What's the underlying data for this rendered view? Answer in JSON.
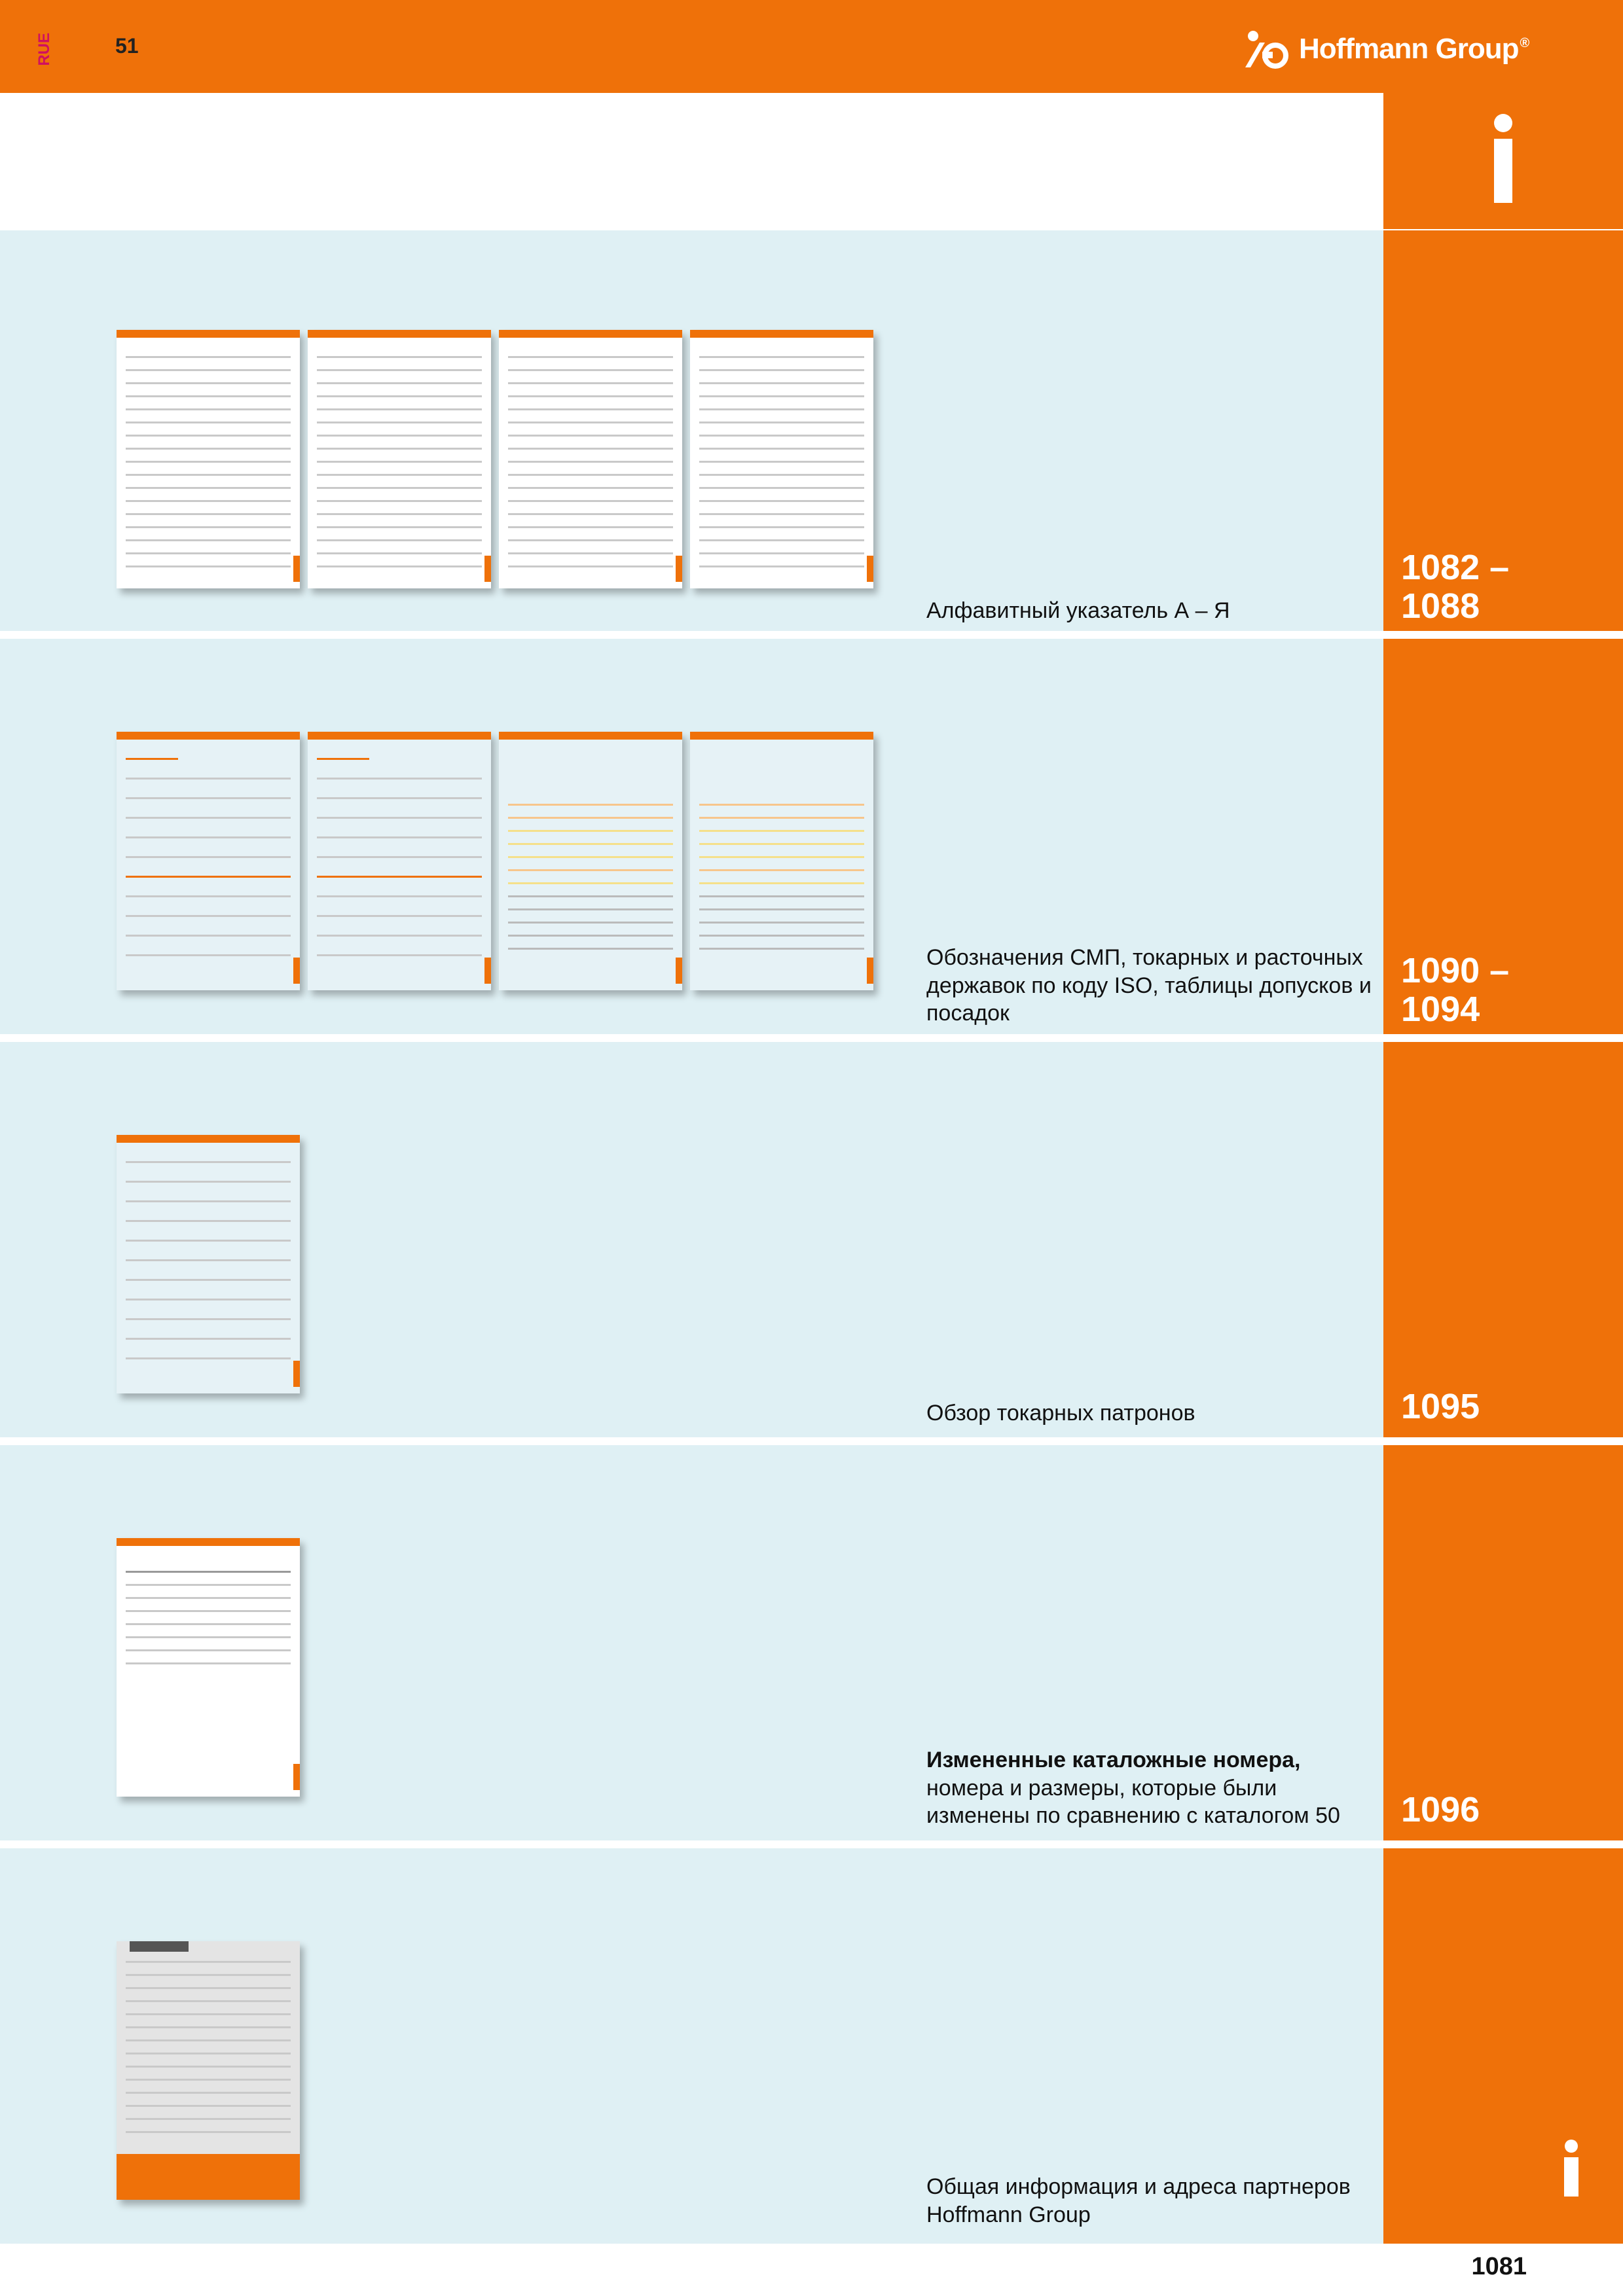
{
  "header": {
    "language_code": "RUE",
    "edition": "51",
    "brand": "Hoffmann Group",
    "brand_mark": "®"
  },
  "sections": [
    {
      "pages": "1082 –\n1088",
      "desc_bold": "",
      "desc": "Алфавитный указатель А – Я",
      "thumb_count": 4
    },
    {
      "pages": "1090 –\n1094",
      "desc_bold": "",
      "desc": "Обозначения СМП, токарных и расточных державок по коду ISO, таблицы допусков и посадок",
      "thumb_count": 4
    },
    {
      "pages": "1095",
      "desc_bold": "",
      "desc": "Обзор токарных патронов",
      "thumb_count": 1
    },
    {
      "pages": "1096",
      "desc_bold": "Измененные каталожные номера,",
      "desc": "номера и размеры, которые были изменены по сравнению с каталогом 50",
      "thumb_count": 1
    },
    {
      "pages": "",
      "desc_bold": "",
      "desc": "Общая информация и адреса партнеров Hoffmann Group",
      "thumb_count": 1
    }
  ],
  "footer": {
    "page_number": "1081"
  },
  "icons": [
    "info-icon",
    "hoffmann-logo-icon"
  ],
  "colors": {
    "brand_orange": "#ef7109",
    "section_bg": "#dff0f4"
  }
}
